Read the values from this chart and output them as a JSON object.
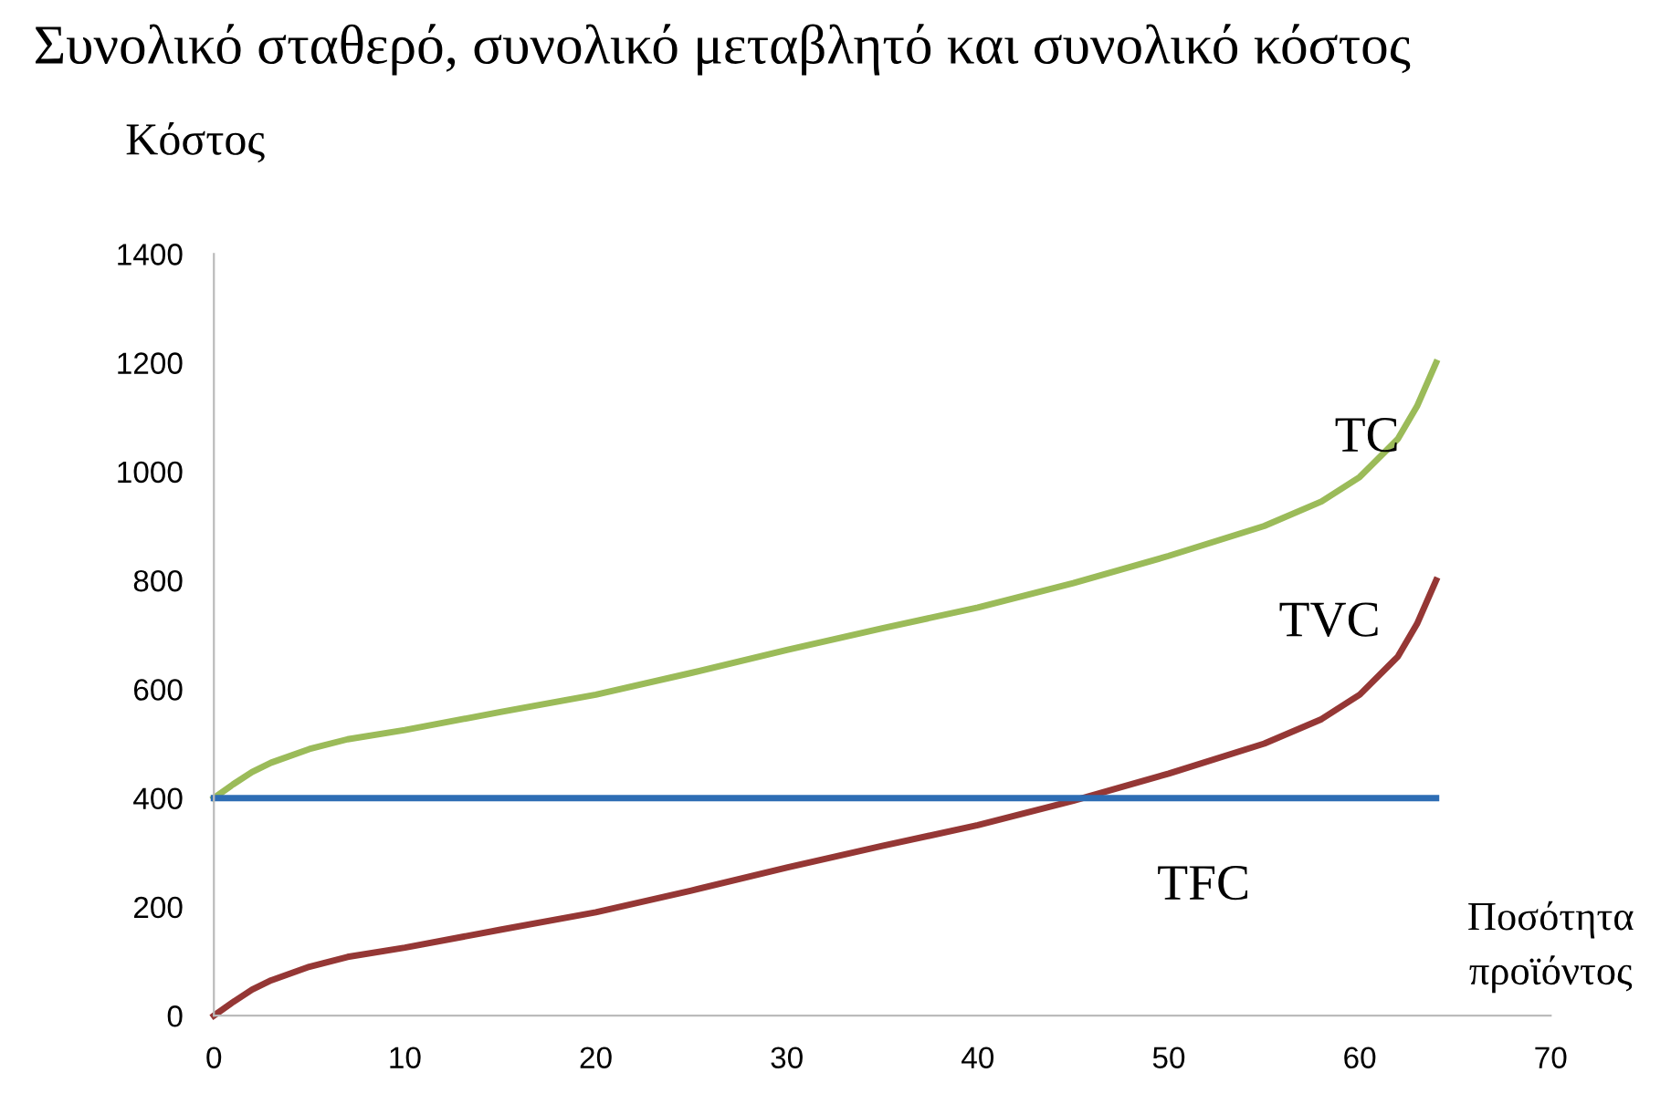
{
  "chart_data": {
    "type": "line",
    "title": "Συνολικό σταθερό, συνολικό μεταβλητό και συνολικό κόστος",
    "ylabel": "Κόστος",
    "xlabel": "Ποσότητα\nπροϊόντος",
    "x": [
      0,
      1,
      2,
      3,
      5,
      7,
      10,
      15,
      20,
      25,
      30,
      35,
      40,
      45,
      50,
      55,
      58,
      60,
      62,
      63,
      64
    ],
    "series": [
      {
        "name": "TC",
        "color": "#9bbb59",
        "values": [
          400,
          425,
          448,
          465,
          490,
          508,
          525,
          558,
          590,
          630,
          672,
          712,
          750,
          795,
          845,
          900,
          945,
          990,
          1060,
          1120,
          1200
        ]
      },
      {
        "name": "TVC",
        "color": "#953735",
        "values": [
          0,
          25,
          48,
          65,
          90,
          108,
          125,
          158,
          190,
          230,
          272,
          312,
          350,
          395,
          445,
          500,
          545,
          590,
          660,
          720,
          800
        ]
      },
      {
        "name": "TFC",
        "color": "#2e6db4",
        "values": [
          400,
          400,
          400,
          400,
          400,
          400,
          400,
          400,
          400,
          400,
          400,
          400,
          400,
          400,
          400,
          400,
          400,
          400,
          400,
          400,
          400
        ]
      }
    ],
    "xlim": [
      0,
      70
    ],
    "ylim": [
      0,
      1400
    ],
    "xticks": [
      0,
      10,
      20,
      30,
      40,
      50,
      60,
      70
    ],
    "yticks": [
      0,
      200,
      400,
      600,
      800,
      1000,
      1200,
      1400
    ],
    "grid": false,
    "legend": false,
    "marker": "none",
    "line_style": "solid"
  }
}
